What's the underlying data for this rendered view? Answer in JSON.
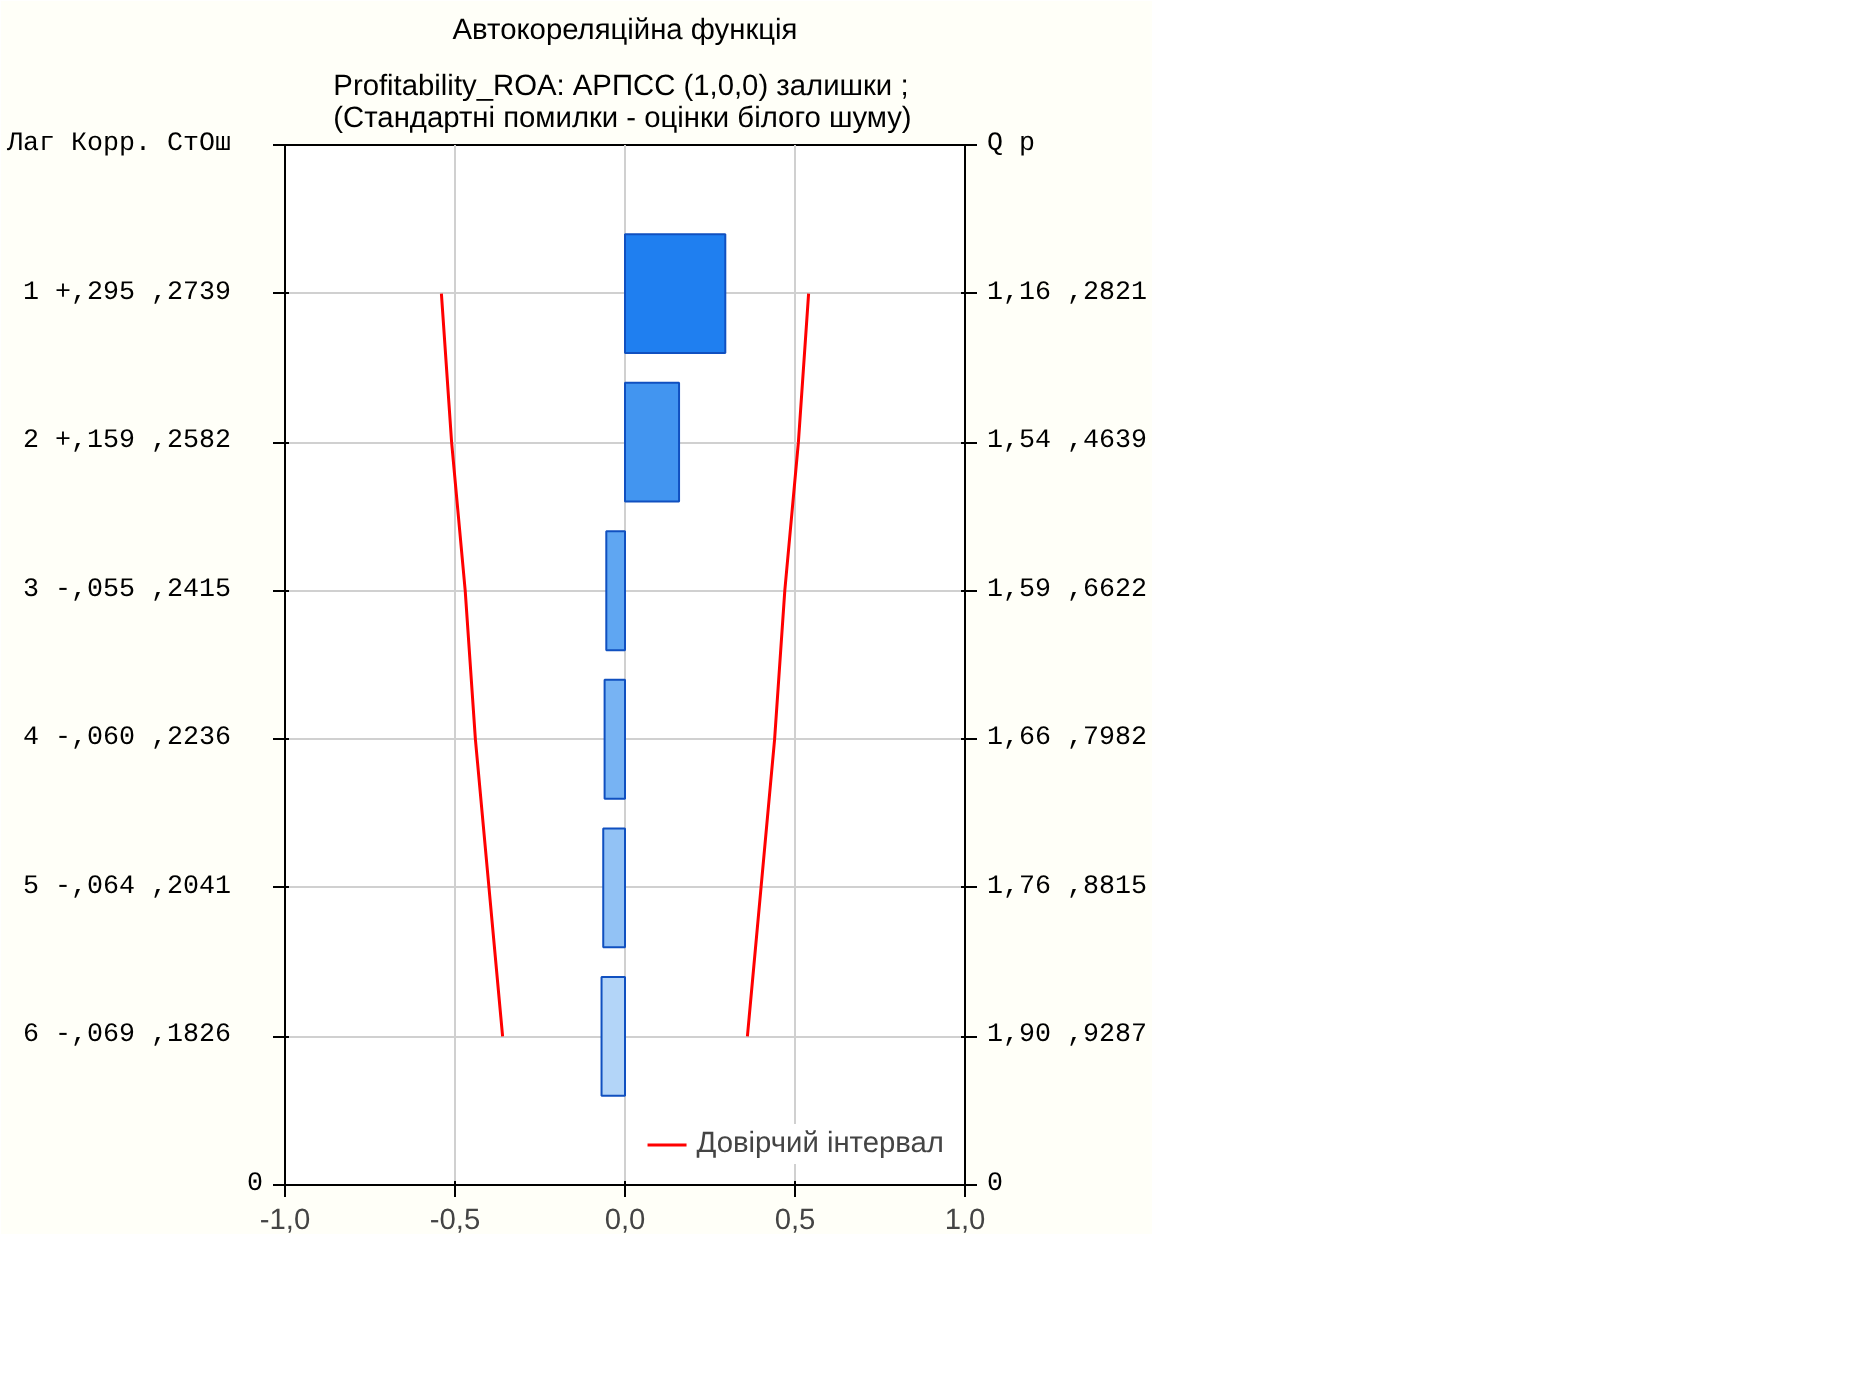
{
  "chart_data": {
    "type": "bar",
    "orientation": "horizontal",
    "title": "Автокореляційна функція",
    "subtitle": "Profitability_ROA: АРПСС (1,0,0) залишки  ;\n(Стандартні помилки - оцінки білого шуму)",
    "categories": [
      "1   +,295 ,2739",
      "2   +,159 ,2582",
      "3   -,055 ,2415",
      "4   -,060 ,2236",
      "5   -,064 ,2041",
      "6   -,069 ,1826"
    ],
    "values": [
      0.295,
      0.159,
      -0.055,
      -0.06,
      -0.064,
      -0.069
    ],
    "colors": [
      "#1f7ff0",
      "#4295f0",
      "#5fa6f2",
      "#77b3f3",
      "#92c2f5",
      "#b3d5f8"
    ],
    "series": [
      {
        "type": "line",
        "name": "Довірчий інтервал",
        "color": "#ff0000",
        "values": [
          0.54,
          0.51,
          0.47,
          0.44,
          0.4,
          0.36
        ]
      },
      {
        "type": "line",
        "color": "#ff0000",
        "values": [
          -0.54,
          -0.51,
          -0.47,
          -0.44,
          -0.4,
          -0.36
        ]
      }
    ],
    "xlim": [
      -1,
      1
    ],
    "xticks": [
      {
        "value": -1,
        "label": "-1,0"
      },
      {
        "value": -0.5,
        "label": "-0,5"
      },
      {
        "value": 0,
        "label": "0,0"
      },
      {
        "value": 0.5,
        "label": "0,5"
      },
      {
        "value": 1,
        "label": "1,0"
      }
    ],
    "annotations": [
      "Лаг   Корр. СтОш",
      "Q    p",
      "1,16 ,2821",
      "1,54 ,4639",
      "1,59 ,6622",
      "1,66 ,7982",
      "1,76 ,8815",
      "1,90 ,9287",
      "0",
      "0"
    ],
    "grid": true,
    "legend": "bottom right"
  }
}
